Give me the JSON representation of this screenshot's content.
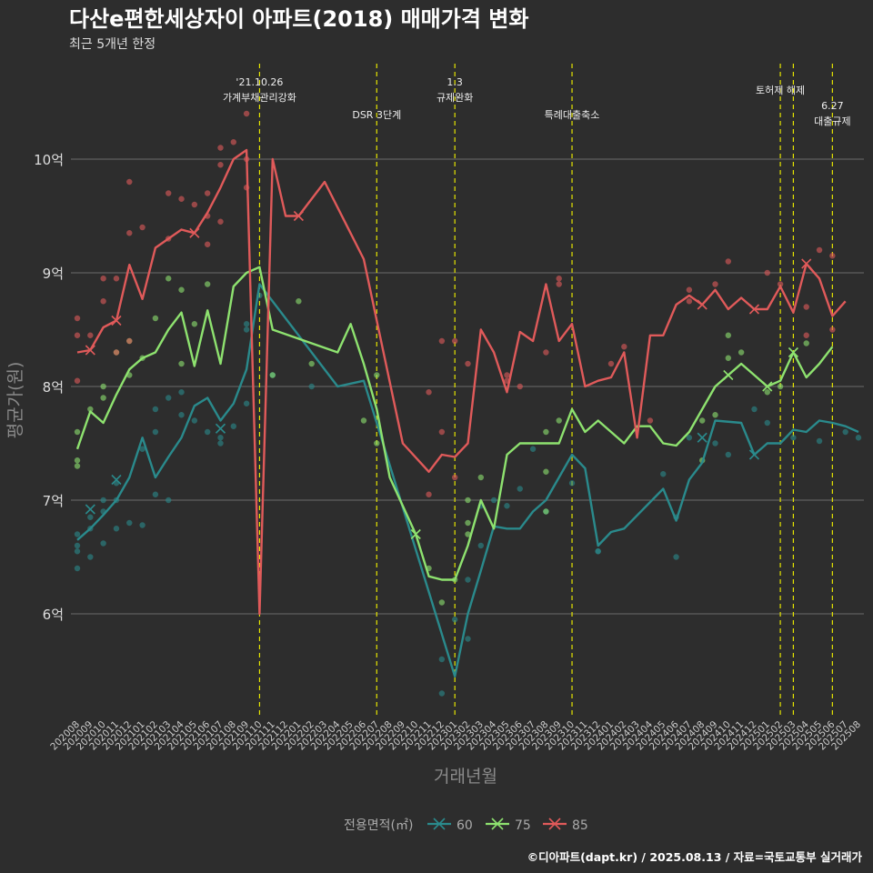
{
  "title": "다산e편한세상자이 아파트(2018) 매매가격 변화",
  "subtitle": "최근 5개년 한정",
  "caption": "©디아파트(dapt.kr) / 2025.08.13 / 자료=국토교통부 실거래가",
  "chart_data": {
    "type": "line",
    "xlabel": "거래년월",
    "ylabel": "평균가(원)",
    "legend_title": "전용면적(㎡)",
    "legend_position": "bottom",
    "grid": true,
    "ylim": [
      4.9,
      11.3
    ],
    "y_ticks": [
      6,
      7,
      8,
      9,
      10
    ],
    "y_tick_labels": [
      "6억",
      "7억",
      "8억",
      "9억",
      "10억"
    ],
    "x": [
      "202008",
      "202009",
      "202010",
      "202011",
      "202012",
      "202101",
      "202102",
      "202103",
      "202104",
      "202105",
      "202106",
      "202107",
      "202108",
      "202109",
      "202110",
      "202111",
      "202112",
      "202201",
      "202202",
      "202203",
      "202204",
      "202205",
      "202206",
      "202207",
      "202208",
      "202209",
      "202210",
      "202211",
      "202212",
      "202301",
      "202302",
      "202303",
      "202304",
      "202305",
      "202306",
      "202307",
      "202308",
      "202309",
      "202310",
      "202311",
      "202312",
      "202401",
      "202402",
      "202403",
      "202404",
      "202405",
      "202406",
      "202407",
      "202408",
      "202409",
      "202410",
      "202411",
      "202412",
      "202501",
      "202502",
      "202503",
      "202504",
      "202505",
      "202506",
      "202507",
      "202508"
    ],
    "events": [
      {
        "x": "202110",
        "lines": [
          "'21.10.26",
          "가계부채관리강화"
        ]
      },
      {
        "x": "202207",
        "lines": [
          "DSR 3단계"
        ]
      },
      {
        "x": "202301",
        "lines": [
          "1.3",
          "규제완화"
        ]
      },
      {
        "x": "202310",
        "lines": [
          "특례대출축소"
        ]
      },
      {
        "x": "202502",
        "lines": [
          "토허제 해제"
        ]
      },
      {
        "x": "202503",
        "lines": []
      },
      {
        "x": "202506",
        "lines": [
          "6.27",
          "대출규제"
        ]
      }
    ],
    "series": [
      {
        "name": "60",
        "color": "#2a8a8c",
        "values": [
          6.65,
          6.75,
          6.87,
          7.0,
          7.2,
          7.55,
          7.2,
          7.38,
          7.55,
          7.83,
          7.9,
          7.7,
          7.85,
          8.15,
          8.9,
          null,
          null,
          null,
          null,
          null,
          8.0,
          null,
          8.05,
          null,
          null,
          null,
          null,
          null,
          null,
          5.45,
          6.0,
          6.38,
          6.77,
          6.75,
          6.75,
          6.9,
          7.0,
          7.2,
          7.4,
          7.28,
          6.6,
          6.72,
          6.75,
          null,
          null,
          7.1,
          6.82,
          7.18,
          7.33,
          7.7,
          null,
          7.68,
          7.4,
          7.5,
          7.5,
          7.62,
          7.6,
          7.7,
          7.68,
          7.65,
          7.6
        ],
        "points": [
          6.4,
          6.55,
          6.6,
          6.7,
          6.75,
          6.85,
          6.5,
          6.9,
          7.0,
          6.62,
          6.75,
          7.0,
          7.15,
          6.78,
          7.45,
          7.05,
          7.6,
          7.8,
          6.8,
          7.0,
          7.9,
          7.75,
          7.95,
          7.7,
          7.6,
          7.55,
          7.5,
          7.65,
          7.85,
          8.5,
          8.55,
          8.8,
          8.1,
          8.0,
          5.3,
          5.6,
          5.95,
          5.78,
          6.3,
          6.6,
          6.95,
          7.0,
          6.95,
          7.1,
          7.45,
          7.15,
          6.55,
          6.55,
          6.9,
          7.23,
          6.5,
          6.85,
          7.55,
          7.5,
          7.4,
          7.8,
          7.68,
          7.55,
          7.52,
          7.55,
          7.6
        ]
      },
      {
        "name": "75",
        "color": "#8ee26f",
        "values": [
          7.45,
          7.78,
          7.68,
          7.93,
          8.15,
          8.25,
          8.3,
          8.5,
          8.65,
          8.18,
          8.67,
          8.2,
          8.88,
          9.0,
          9.05,
          8.5,
          null,
          8.42,
          null,
          null,
          8.3,
          8.55,
          8.2,
          7.8,
          7.2,
          null,
          6.7,
          6.33,
          6.3,
          6.3,
          6.6,
          7.0,
          6.75,
          7.4,
          7.5,
          7.5,
          7.5,
          7.5,
          7.8,
          7.6,
          7.7,
          null,
          7.5,
          7.65,
          7.65,
          7.5,
          7.48,
          7.6,
          7.8,
          8.0,
          8.1,
          8.2,
          8.1,
          8.0,
          8.05,
          8.3,
          8.08,
          8.2,
          8.35,
          null,
          null
        ],
        "points": [
          7.3,
          7.6,
          7.35,
          7.8,
          7.9,
          8.0,
          8.3,
          8.4,
          8.1,
          8.25,
          8.6,
          8.95,
          8.85,
          8.2,
          8.55,
          8.9,
          8.1,
          8.75,
          8.2,
          7.7,
          7.5,
          8.1,
          6.4,
          6.1,
          6.3,
          6.7,
          6.8,
          7.2,
          7.0,
          7.25,
          7.6,
          7.7,
          6.9,
          7.35,
          7.7,
          7.75,
          8.45,
          8.25,
          8.3,
          7.95,
          8.0,
          8.38
        ]
      },
      {
        "name": "85",
        "color": "#e05a5a",
        "values": [
          8.3,
          8.32,
          8.52,
          8.58,
          9.07,
          8.77,
          9.22,
          9.3,
          9.38,
          9.35,
          9.53,
          9.75,
          10.0,
          10.08,
          6.0,
          10.0,
          9.5,
          9.5,
          null,
          9.8,
          null,
          null,
          9.12,
          null,
          null,
          7.5,
          null,
          7.25,
          7.4,
          7.38,
          7.5,
          8.5,
          8.3,
          7.95,
          8.48,
          8.4,
          8.9,
          8.4,
          8.55,
          8.0,
          8.05,
          8.08,
          8.3,
          7.55,
          8.45,
          8.45,
          8.72,
          8.8,
          8.72,
          8.85,
          8.68,
          8.78,
          8.68,
          8.68,
          8.88,
          8.65,
          9.08,
          8.95,
          8.62,
          8.75,
          null
        ],
        "points": [
          8.6,
          8.45,
          8.05,
          8.45,
          8.95,
          8.75,
          9.35,
          8.3,
          9.8,
          9.4,
          9.3,
          9.7,
          9.65,
          9.5,
          9.25,
          9.45,
          9.95,
          10.1,
          10.15,
          10.0,
          10.4,
          9.75,
          9.7,
          9.6,
          8.95,
          8.4,
          7.95,
          7.05,
          7.6,
          8.4,
          7.2,
          8.4,
          8.2,
          8.05,
          8.1,
          8.0,
          8.3,
          8.9,
          8.95,
          8.2,
          8.35,
          7.7,
          8.85,
          8.75,
          8.9,
          9.1,
          9.0,
          8.9,
          8.45,
          8.7,
          8.5,
          9.15,
          9.2
        ]
      }
    ],
    "point_months": {
      "60": [
        "202008",
        "202008",
        "202008",
        "202008",
        "202009",
        "202009",
        "202009",
        "202010",
        "202010",
        "202010",
        "202011",
        "202011",
        "202011",
        "202101",
        "202101",
        "202102",
        "202102",
        "202102",
        "202012",
        "202103",
        "202103",
        "202104",
        "202104",
        "202105",
        "202106",
        "202107",
        "202107",
        "202108",
        "202109",
        "202109",
        "202109",
        "202110",
        "202111",
        "202202",
        "202212",
        "202212",
        "202301",
        "202302",
        "202302",
        "202303",
        "202303",
        "202304",
        "202305",
        "202306",
        "202307",
        "202310",
        "202312",
        "202312",
        "202308",
        "202405",
        "202406",
        "202406",
        "202407",
        "202409",
        "202410",
        "202412",
        "202501",
        "202503",
        "202505",
        "202508",
        "202507"
      ],
      "75": [
        "202008",
        "202008",
        "202008",
        "202009",
        "202010",
        "202010",
        "202011",
        "202012",
        "202012",
        "202101",
        "202102",
        "202103",
        "202104",
        "202104",
        "202105",
        "202106",
        "202111",
        "202201",
        "202202",
        "202206",
        "202207",
        "202207",
        "202211",
        "202212",
        "202301",
        "202302",
        "202302",
        "202303",
        "202302",
        "202308",
        "202308",
        "202309",
        "202308",
        "202408",
        "202408",
        "202409",
        "202410",
        "202410",
        "202411",
        "202501",
        "202502",
        "202504"
      ],
      "85": [
        "202008",
        "202008",
        "202008",
        "202009",
        "202010",
        "202010",
        "202012",
        "202011",
        "202012",
        "202101",
        "202103",
        "202103",
        "202104",
        "202106",
        "202106",
        "202107",
        "202107",
        "202107",
        "202108",
        "202109",
        "202109",
        "202109",
        "202106",
        "202105",
        "202011",
        "202012",
        "202211",
        "202211",
        "202212",
        "202212",
        "202301",
        "202301",
        "202302",
        "202305",
        "202305",
        "202306",
        "202308",
        "202309",
        "202309",
        "202401",
        "202402",
        "202404",
        "202407",
        "202407",
        "202409",
        "202410",
        "202501",
        "202502",
        "202504",
        "202504",
        "202506",
        "202506",
        "202505"
      ]
    },
    "markers": {
      "60": [
        [
          "202009",
          6.92
        ],
        [
          "202011",
          7.18
        ],
        [
          "202107",
          7.63
        ],
        [
          "202412",
          7.4
        ],
        [
          "202408",
          7.55
        ]
      ],
      "75": [
        "202210",
        "202410",
        "202503",
        "202501"
      ],
      "85": [
        "202009",
        "202011",
        "202105",
        "202201",
        "202408",
        "202412",
        "202504"
      ]
    }
  }
}
